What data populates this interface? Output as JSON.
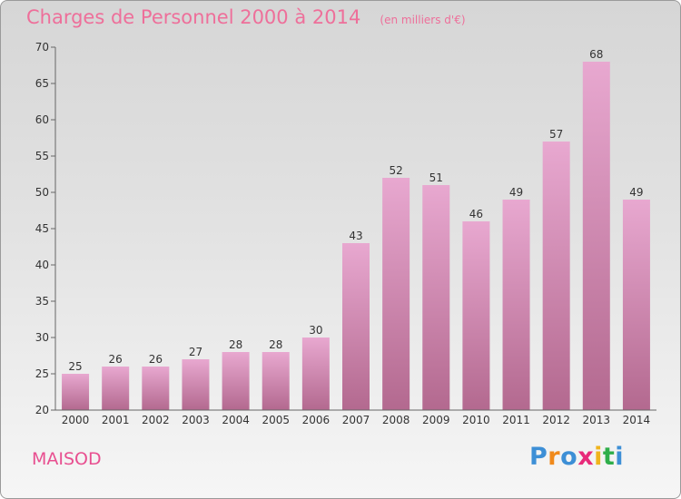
{
  "chart_data": {
    "type": "bar",
    "title": "Charges de Personnel 2000 à 2014",
    "subtitle": "(en milliers d'€)",
    "categories": [
      "2000",
      "2001",
      "2002",
      "2003",
      "2004",
      "2005",
      "2006",
      "2007",
      "2008",
      "2009",
      "2010",
      "2011",
      "2012",
      "2013",
      "2014"
    ],
    "values": [
      25,
      26,
      26,
      27,
      28,
      28,
      30,
      43,
      52,
      51,
      46,
      49,
      57,
      68,
      49
    ],
    "ylim": [
      20,
      70
    ],
    "yticks": [
      20,
      25,
      30,
      35,
      40,
      45,
      50,
      55,
      60,
      65,
      70
    ],
    "grid": false,
    "colors": {
      "bar_top": "#e8a8d0",
      "bar_bottom": "#b3698f",
      "title": "#ee6f9a"
    }
  },
  "footer": {
    "place": "MAISOD",
    "logo_letters": [
      {
        "ch": "P",
        "color": "#3d8fd6"
      },
      {
        "ch": "r",
        "color": "#f08a1c"
      },
      {
        "ch": "o",
        "color": "#3d8fd6"
      },
      {
        "ch": "x",
        "color": "#e82a7a"
      },
      {
        "ch": "i",
        "color": "#f0b41c"
      },
      {
        "ch": "t",
        "color": "#2fae4a"
      },
      {
        "ch": "i",
        "color": "#3d8fd6"
      }
    ]
  }
}
